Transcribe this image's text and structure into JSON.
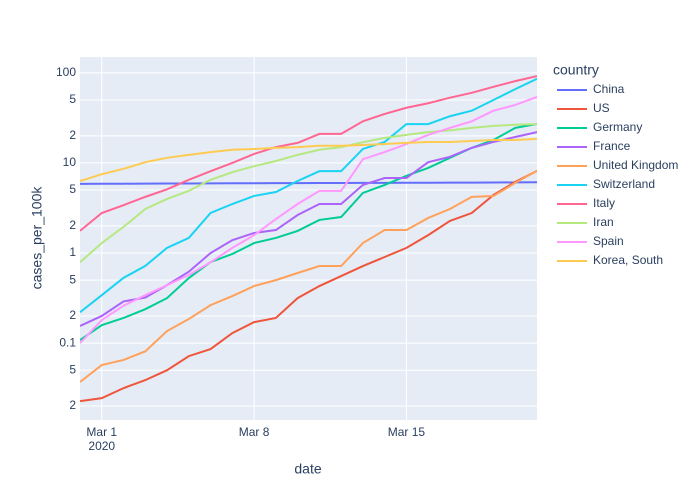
{
  "chart_data": {
    "type": "line",
    "x_label": "date",
    "y_label": "cases_per_100k",
    "legend_title": "country",
    "log_y": true,
    "grid": true,
    "legend": "right",
    "x": [
      "2020-02-29",
      "2020-03-01",
      "2020-03-02",
      "2020-03-03",
      "2020-03-04",
      "2020-03-05",
      "2020-03-06",
      "2020-03-07",
      "2020-03-08",
      "2020-03-09",
      "2020-03-10",
      "2020-03-11",
      "2020-03-12",
      "2020-03-13",
      "2020-03-14",
      "2020-03-15",
      "2020-03-16",
      "2020-03-17",
      "2020-03-18",
      "2020-03-19",
      "2020-03-20",
      "2020-03-21"
    ],
    "xlim": [
      "2020-02-29",
      "2020-03-21"
    ],
    "xticks": [
      {
        "value": "2020-03-01",
        "label": "Mar 1\n2020"
      },
      {
        "value": "2020-03-08",
        "label": "Mar 8"
      },
      {
        "value": "2020-03-15",
        "label": "Mar 15"
      }
    ],
    "ylim": [
      0.014,
      150
    ],
    "yticks": [
      {
        "value": 0.02,
        "label": "2"
      },
      {
        "value": 0.05,
        "label": "5"
      },
      0.1,
      {
        "value": 0.2,
        "label": "2"
      },
      {
        "value": 0.5,
        "label": "5"
      },
      1,
      {
        "value": 2,
        "label": "2"
      },
      {
        "value": 5,
        "label": "5"
      },
      10,
      {
        "value": 20,
        "label": "2"
      },
      {
        "value": 50,
        "label": "5"
      },
      100
    ],
    "series": [
      {
        "name": "China",
        "color": "#636efa",
        "values": [
          5.85,
          5.87,
          5.88,
          5.9,
          5.91,
          5.92,
          5.93,
          5.94,
          5.95,
          5.96,
          5.97,
          5.98,
          5.99,
          6.0,
          6.01,
          6.02,
          6.03,
          6.04,
          6.05,
          6.06,
          6.08,
          6.1
        ]
      },
      {
        "name": "US",
        "color": "#EF553B",
        "values": [
          0.0227,
          0.0245,
          0.0316,
          0.0388,
          0.05,
          0.0717,
          0.0858,
          0.129,
          0.171,
          0.19,
          0.316,
          0.43,
          0.555,
          0.717,
          0.903,
          1.14,
          1.58,
          2.27,
          2.78,
          4.41,
          6.16,
          8.16
        ]
      },
      {
        "name": "Germany",
        "color": "#00cc96",
        "values": [
          0.108,
          0.158,
          0.19,
          0.238,
          0.316,
          0.527,
          0.794,
          0.975,
          1.29,
          1.47,
          1.76,
          2.33,
          2.51,
          4.64,
          5.7,
          7.2,
          8.8,
          11.4,
          14.7,
          18.0,
          24.5,
          27.1
        ]
      },
      {
        "name": "France",
        "color": "#ab63fa",
        "values": [
          0.155,
          0.2,
          0.29,
          0.32,
          0.44,
          0.62,
          1.0,
          1.39,
          1.67,
          1.8,
          2.64,
          3.5,
          3.5,
          5.7,
          6.8,
          6.8,
          10.2,
          11.7,
          14.7,
          17.1,
          19.4,
          22
        ]
      },
      {
        "name": "United Kingdom",
        "color": "#FFA15A",
        "values": [
          0.037,
          0.057,
          0.065,
          0.081,
          0.136,
          0.185,
          0.264,
          0.333,
          0.43,
          0.5,
          0.6,
          0.717,
          0.717,
          1.29,
          1.8,
          1.8,
          2.45,
          3.08,
          4.2,
          4.3,
          6.0,
          8.2
        ]
      },
      {
        "name": "Switzerland",
        "color": "#19d3f3",
        "values": [
          0.22,
          0.34,
          0.53,
          0.72,
          1.14,
          1.47,
          2.78,
          3.5,
          4.3,
          4.76,
          6.3,
          8.1,
          8.1,
          14.3,
          17.1,
          27,
          27,
          33,
          38,
          50,
          66,
          86
        ]
      },
      {
        "name": "Italy",
        "color": "#FF6692",
        "values": [
          1.76,
          2.78,
          3.4,
          4.2,
          5.1,
          6.5,
          8.1,
          10,
          12.6,
          15,
          16.7,
          21,
          21,
          29,
          35,
          41,
          46,
          53,
          60,
          70,
          81,
          92
        ]
      },
      {
        "name": "Iran",
        "color": "#B6E880",
        "values": [
          0.79,
          1.29,
          1.95,
          3.08,
          3.98,
          4.9,
          6.5,
          7.9,
          9.2,
          10.5,
          12.3,
          14,
          15,
          17,
          19,
          20.5,
          22,
          23,
          24.5,
          25.8,
          26.5,
          27
        ]
      },
      {
        "name": "Spain",
        "color": "#FF97FF",
        "values": [
          0.1,
          0.18,
          0.26,
          0.34,
          0.44,
          0.57,
          0.79,
          1.14,
          1.58,
          2.38,
          3.5,
          4.9,
          4.9,
          11,
          13.2,
          16.2,
          20.5,
          24.5,
          29,
          38,
          44,
          54
        ]
      },
      {
        "name": "Korea, South",
        "color": "#FECB52",
        "values": [
          6.3,
          7.5,
          8.6,
          10.2,
          11.4,
          12.3,
          13.2,
          14,
          14.3,
          14.7,
          15,
          15.5,
          15.5,
          15.8,
          16.2,
          16.7,
          17.1,
          17.1,
          17.5,
          18,
          18,
          18.5
        ]
      }
    ]
  }
}
